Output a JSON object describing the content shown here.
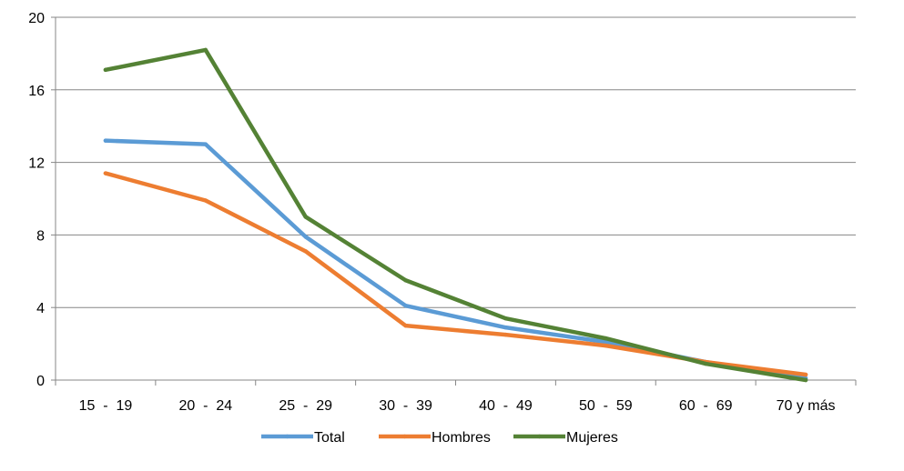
{
  "chart_data": {
    "type": "line",
    "title": "",
    "xlabel": "",
    "ylabel": "",
    "categories": [
      "15  -  19",
      "20  -  24",
      "25  -  29",
      "30  -  39",
      "40  -  49",
      "50  -  59",
      "60  -  69",
      "70 y más"
    ],
    "ylim": [
      0,
      20
    ],
    "yticks": [
      0,
      4,
      8,
      12,
      16,
      20
    ],
    "grid": true,
    "legend": "bottom",
    "series": [
      {
        "name": "Total",
        "color": "#5b9bd5",
        "values": [
          13.2,
          13.0,
          7.9,
          4.1,
          2.9,
          2.1,
          1.0,
          0.1
        ]
      },
      {
        "name": "Hombres",
        "color": "#ed7d31",
        "values": [
          11.4,
          9.9,
          7.1,
          3.0,
          2.5,
          1.9,
          1.0,
          0.3
        ]
      },
      {
        "name": "Mujeres",
        "color": "#548235",
        "values": [
          17.1,
          18.2,
          9.0,
          5.5,
          3.4,
          2.3,
          0.9,
          0.0
        ]
      }
    ]
  }
}
